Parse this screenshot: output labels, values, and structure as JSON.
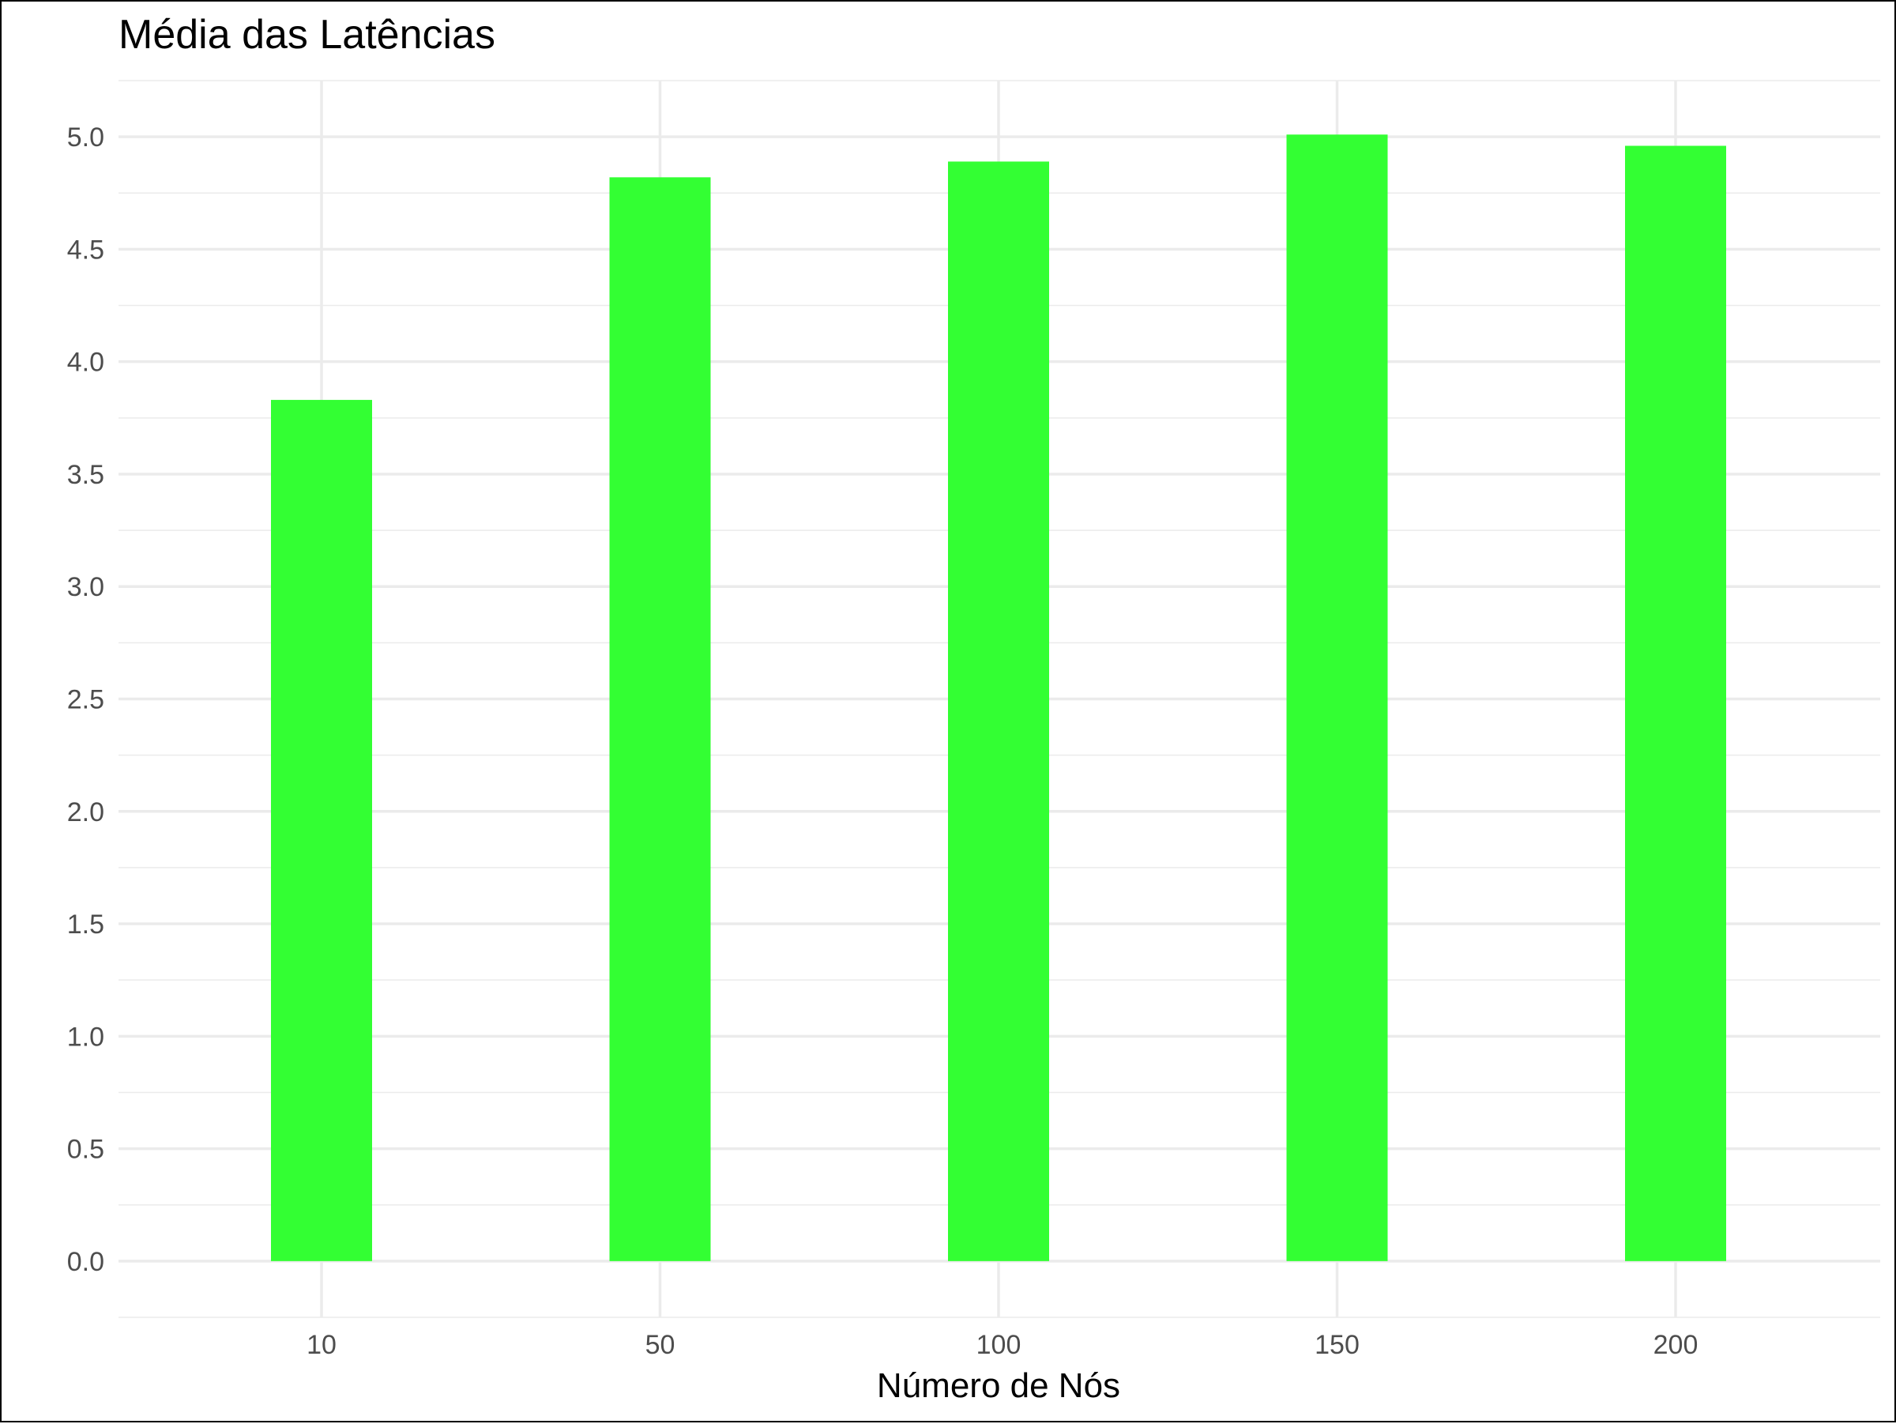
{
  "chart_data": {
    "type": "bar",
    "title": "Média das Latências",
    "xlabel": "Número de Nós",
    "ylabel": "",
    "categories": [
      "10",
      "50",
      "100",
      "150",
      "200"
    ],
    "values": [
      3.83,
      4.82,
      4.89,
      5.01,
      4.96
    ],
    "y_ticks": [
      "0.0",
      "0.5",
      "1.0",
      "1.5",
      "2.0",
      "2.5",
      "3.0",
      "3.5",
      "4.0",
      "4.5",
      "5.0"
    ],
    "ylim": [
      -0.25,
      5.25
    ],
    "grid": true,
    "legend": "none",
    "bar_color": "#33FF33",
    "grid_color": "#EBEBEB"
  }
}
